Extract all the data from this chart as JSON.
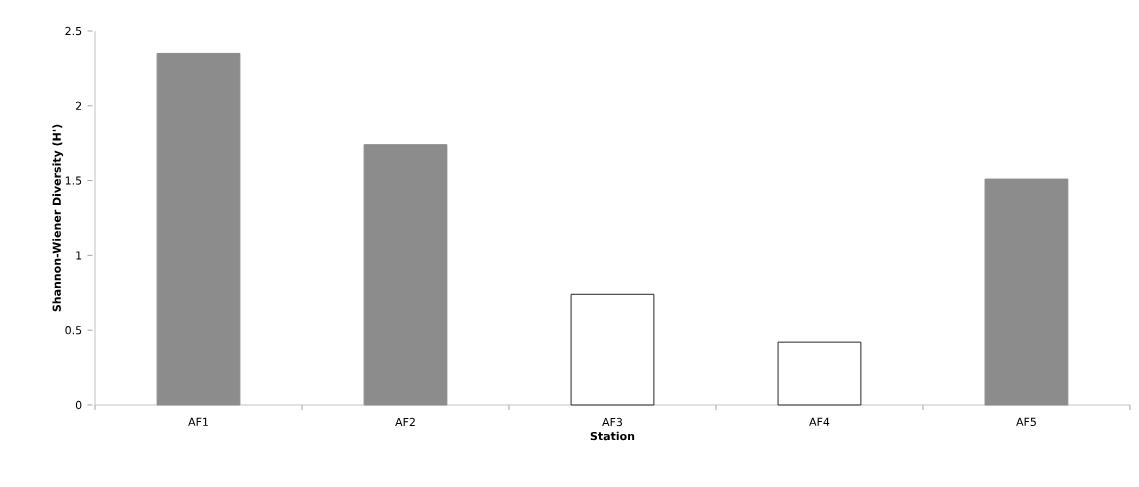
{
  "chart_data": {
    "type": "bar",
    "xlabel": "Station",
    "ylabel": "Shannon-Wiener Diversity (H')",
    "categories": [
      "AF1",
      "AF2",
      "AF3",
      "AF4",
      "AF5"
    ],
    "values": [
      2.35,
      1.74,
      0.74,
      0.42,
      1.51
    ],
    "colors": [
      "#8c8c8c",
      "#8c8c8c",
      "#ffffff",
      "#ffffff",
      "#8c8c8c"
    ],
    "ylim": [
      0,
      2.5
    ],
    "yticks": [
      0,
      0.5,
      1,
      1.5,
      2,
      2.5
    ]
  }
}
